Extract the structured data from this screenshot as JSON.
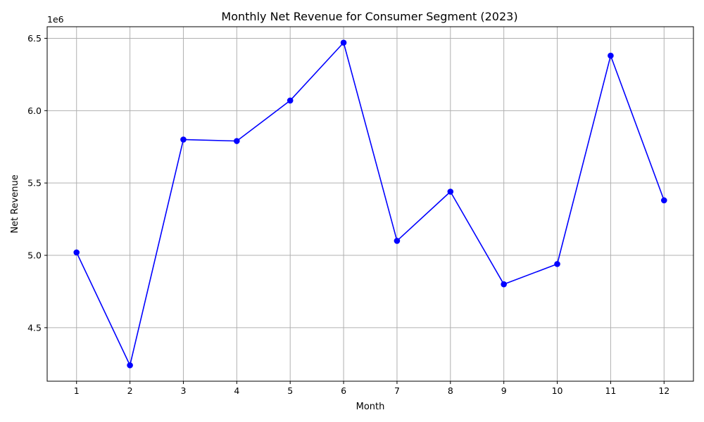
{
  "chart_data": {
    "type": "line",
    "title": "Monthly Net Revenue for Consumer Segment (2023)",
    "xlabel": "Month",
    "ylabel": "Net Revenue",
    "offset_label": "1e6",
    "x": [
      1,
      2,
      3,
      4,
      5,
      6,
      7,
      8,
      9,
      10,
      11,
      12
    ],
    "series": [
      {
        "values": [
          5020000,
          4240000,
          5800000,
          5790000,
          6070000,
          6470000,
          5100000,
          5440000,
          4800000,
          4940000,
          6380000,
          5380000
        ],
        "color": "#0000ff",
        "marker": "circle"
      }
    ],
    "xlim": [
      0.45,
      12.55
    ],
    "ylim": [
      4130000,
      6580000
    ],
    "xticks": [
      1,
      2,
      3,
      4,
      5,
      6,
      7,
      8,
      9,
      10,
      11,
      12
    ],
    "yticks": [
      4500000,
      5000000,
      5500000,
      6000000,
      6500000
    ],
    "ytick_labels": [
      "4.5",
      "5.0",
      "5.5",
      "6.0",
      "6.5"
    ],
    "grid": true
  }
}
